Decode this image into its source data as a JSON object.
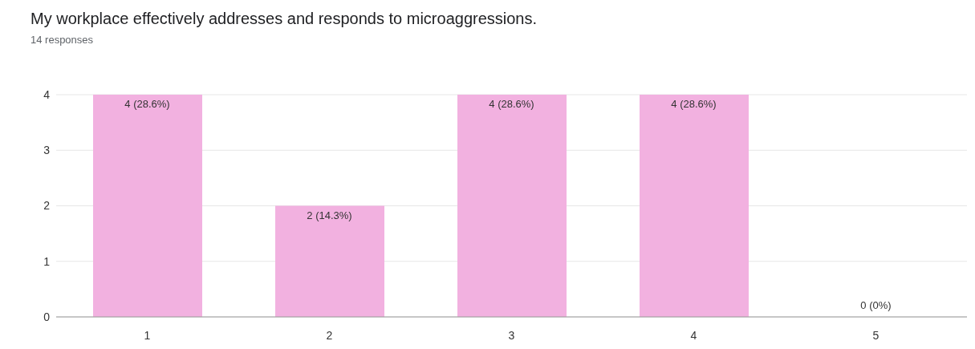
{
  "chart_data": {
    "type": "bar",
    "title": "My workplace effectively addresses and responds to microaggressions.",
    "subtitle": "14 responses",
    "categories": [
      "1",
      "2",
      "3",
      "4",
      "5"
    ],
    "values": [
      4,
      2,
      4,
      4,
      0
    ],
    "value_labels": [
      "4 (28.6%)",
      "2 (14.3%)",
      "4 (28.6%)",
      "4 (28.6%)",
      "0 (0%)"
    ],
    "color": "#f2b1e0",
    "ylim": [
      0,
      4
    ],
    "yticks": [
      0,
      1,
      2,
      3,
      4
    ],
    "grid": "y"
  }
}
